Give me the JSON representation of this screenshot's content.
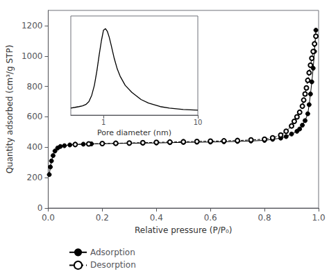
{
  "chart_data": [
    {
      "type": "line",
      "xlabel": "Relative pressure (P/P₀)",
      "ylabel": "Quantity adsorbed (cm³/g STP)",
      "xlim": [
        0,
        1.0
      ],
      "ylim": [
        0,
        1300
      ],
      "xticks": [
        {
          "value": 0.0,
          "label": "0.0"
        },
        0.2,
        0.4,
        0.6,
        0.8,
        {
          "value": 1.0,
          "label": "1.0"
        }
      ],
      "yticks": [
        0,
        200,
        400,
        600,
        800,
        1000,
        1200
      ],
      "grid": false,
      "legend": "bottom",
      "series": [
        {
          "name": "Adsorption",
          "color": "#000000",
          "marker": "circle",
          "line_style": "solid",
          "x": [
            0.004,
            0.008,
            0.012,
            0.018,
            0.025,
            0.035,
            0.045,
            0.06,
            0.08,
            0.1,
            0.13,
            0.16,
            0.2,
            0.25,
            0.3,
            0.35,
            0.4,
            0.45,
            0.5,
            0.55,
            0.6,
            0.65,
            0.7,
            0.75,
            0.8,
            0.83,
            0.86,
            0.88,
            0.9,
            0.92,
            0.93,
            0.94,
            0.95,
            0.96,
            0.965,
            0.97,
            0.975,
            0.98,
            0.985,
            0.99
          ],
          "values": [
            220,
            270,
            310,
            345,
            375,
            395,
            405,
            410,
            415,
            418,
            420,
            422,
            423,
            425,
            426,
            427,
            428,
            430,
            432,
            433,
            434,
            436,
            438,
            441,
            445,
            452,
            460,
            470,
            487,
            505,
            520,
            545,
            575,
            620,
            680,
            750,
            830,
            920,
            1030,
            1170
          ]
        },
        {
          "name": "Desorption",
          "color": "#000000",
          "marker": "emptyCircle",
          "line_style": "dashed",
          "x": [
            0.99,
            0.985,
            0.98,
            0.975,
            0.97,
            0.965,
            0.96,
            0.955,
            0.95,
            0.945,
            0.94,
            0.93,
            0.92,
            0.91,
            0.9,
            0.88,
            0.86,
            0.83,
            0.8,
            0.75,
            0.7,
            0.65,
            0.6,
            0.55,
            0.5,
            0.45,
            0.4,
            0.35,
            0.3,
            0.25,
            0.2,
            0.15,
            0.1
          ],
          "values": [
            1130,
            1080,
            1030,
            985,
            940,
            890,
            840,
            790,
            750,
            710,
            670,
            630,
            600,
            570,
            540,
            505,
            480,
            462,
            453,
            448,
            444,
            442,
            440,
            438,
            436,
            434,
            432,
            430,
            428,
            426,
            424,
            422,
            418
          ]
        }
      ]
    },
    {
      "type": "line",
      "xlabel": "Pore diameter (nm)",
      "log": "x",
      "xlim": [
        0.45,
        10
      ],
      "xticks": [
        1,
        10
      ],
      "ylim": [
        0,
        1.4
      ],
      "tick_labels": "x",
      "grid": false,
      "series": [
        {
          "color": "#000000",
          "line_style": "solid",
          "x": [
            0.45,
            0.5,
            0.55,
            0.6,
            0.65,
            0.7,
            0.75,
            0.8,
            0.85,
            0.9,
            0.95,
            1.0,
            1.05,
            1.1,
            1.15,
            1.2,
            1.3,
            1.4,
            1.5,
            1.7,
            2.0,
            2.5,
            3.0,
            4.0,
            5.0,
            7.0,
            10.0
          ],
          "values": [
            0.1,
            0.11,
            0.12,
            0.13,
            0.15,
            0.19,
            0.28,
            0.42,
            0.62,
            0.85,
            1.05,
            1.2,
            1.22,
            1.18,
            1.1,
            1.0,
            0.8,
            0.65,
            0.55,
            0.42,
            0.32,
            0.22,
            0.17,
            0.12,
            0.1,
            0.08,
            0.07
          ]
        }
      ]
    }
  ]
}
